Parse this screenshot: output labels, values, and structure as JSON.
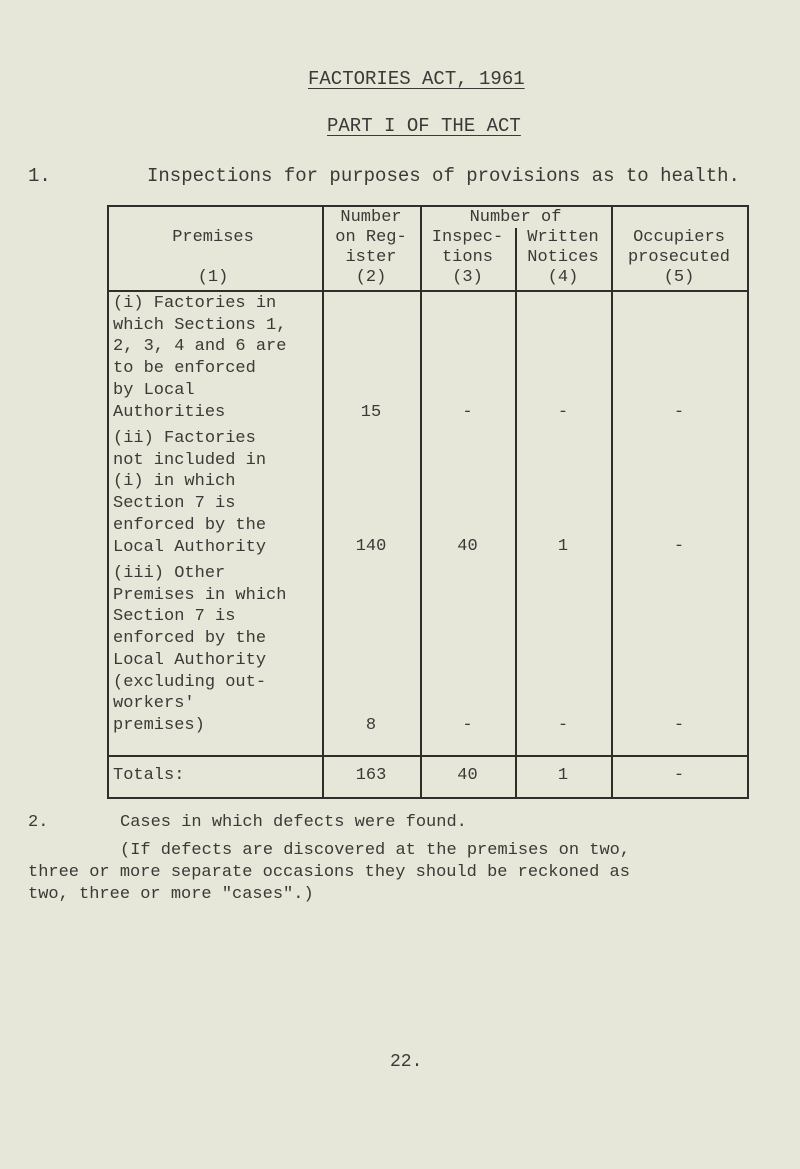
{
  "title": "FACTORIES ACT, 1961",
  "subtitle": "PART I OF THE ACT",
  "section1": {
    "number": "1.",
    "text": "Inspections for purposes of provisions as to health."
  },
  "table": {
    "headers": {
      "premises": "Premises\n\n(1)",
      "register": "Number\non Reg-\nister\n(2)",
      "number_of": "Number of",
      "inspections": "Inspec-\ntions\n(3)",
      "notices": "Written\nNotices\n(4)",
      "occupiers": "Occupiers\nprosecuted\n(5)"
    },
    "rows": [
      {
        "premises": "(i) Factories in\nwhich Sections 1,\n2, 3, 4 and 6 are\nto be enforced\nby Local\nAuthorities",
        "register": "15",
        "inspections": "-",
        "notices": "-",
        "occupiers": "-"
      },
      {
        "premises": "(ii) Factories\nnot included in\n(i) in which\nSection 7 is\nenforced by the\nLocal Authority",
        "register": "140",
        "inspections": "40",
        "notices": "1",
        "occupiers": "-"
      },
      {
        "premises": "(iii) Other\nPremises in which\nSection 7 is\nenforced by the\nLocal Authority\n(excluding out-\nworkers'\npremises)",
        "register": "8",
        "inspections": "-",
        "notices": "-",
        "occupiers": "-"
      }
    ],
    "totals": {
      "label": "Totals:",
      "register": "163",
      "inspections": "40",
      "notices": "1",
      "occupiers": "-"
    }
  },
  "section2": {
    "number": "2.",
    "text": "Cases in which defects were found.",
    "note": "(If defects are discovered at the premises on two,\nthree or more separate occasions they should be reckoned as\ntwo, three or more \"cases\".)"
  },
  "page_number": "22."
}
